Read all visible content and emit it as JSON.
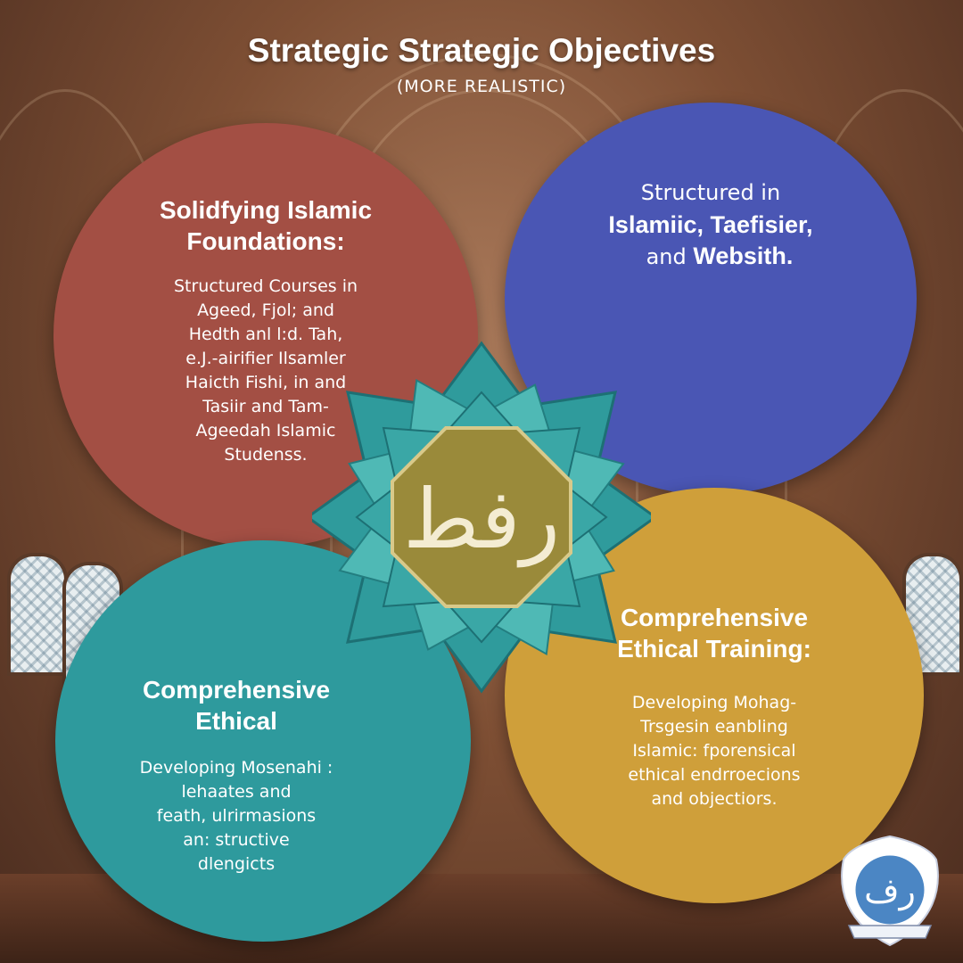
{
  "header": {
    "title": "Strategic  Strategjc Objectives",
    "subtitle": "(MORE REALISTIC)"
  },
  "quadrants": {
    "top_left": {
      "heading": "Solidfying Islamic\nFoundations:",
      "body": "Structured Courses in\nAgeed, Fjol; and\nHedth anl l:d. Tah,\ne.J.-airifier Ilsamler\nHaicth Fishi, in and\nTasiir and Tam-\nAgeedah Islamic\nStudenss."
    },
    "top_right": {
      "intro": "Structured in",
      "heading": "Islamiic, Taefisier,",
      "heading_tail_prefix": "and ",
      "heading_tail_bold": "Websith."
    },
    "bottom_left": {
      "heading": "Comprehensive\nEthical",
      "body": "Developing Mosenahi :\nlehaates and\nfeath, ulrirmasions\nan: structive\ndlengicts"
    },
    "bottom_right": {
      "heading": "Comprehensive\nEthical Training:",
      "body": "Developing Mohag-\nTrsgesin eanbling\nIslamic: fporensical\nethical endrroecions\nand objectiors."
    }
  },
  "emblem": {
    "calligraphy": "رفط",
    "icon": "islamic-star-calligraphy-emblem"
  },
  "logo": {
    "calligraphy": "رف",
    "icon": "institution-crest-logo"
  },
  "colors": {
    "red": "#a34f44",
    "blue": "#4a56b4",
    "teal": "#2e9a9d",
    "gold": "#cf9f3a",
    "emblem_teal": "#3aa7a6",
    "emblem_olive": "#9a8a3a"
  }
}
